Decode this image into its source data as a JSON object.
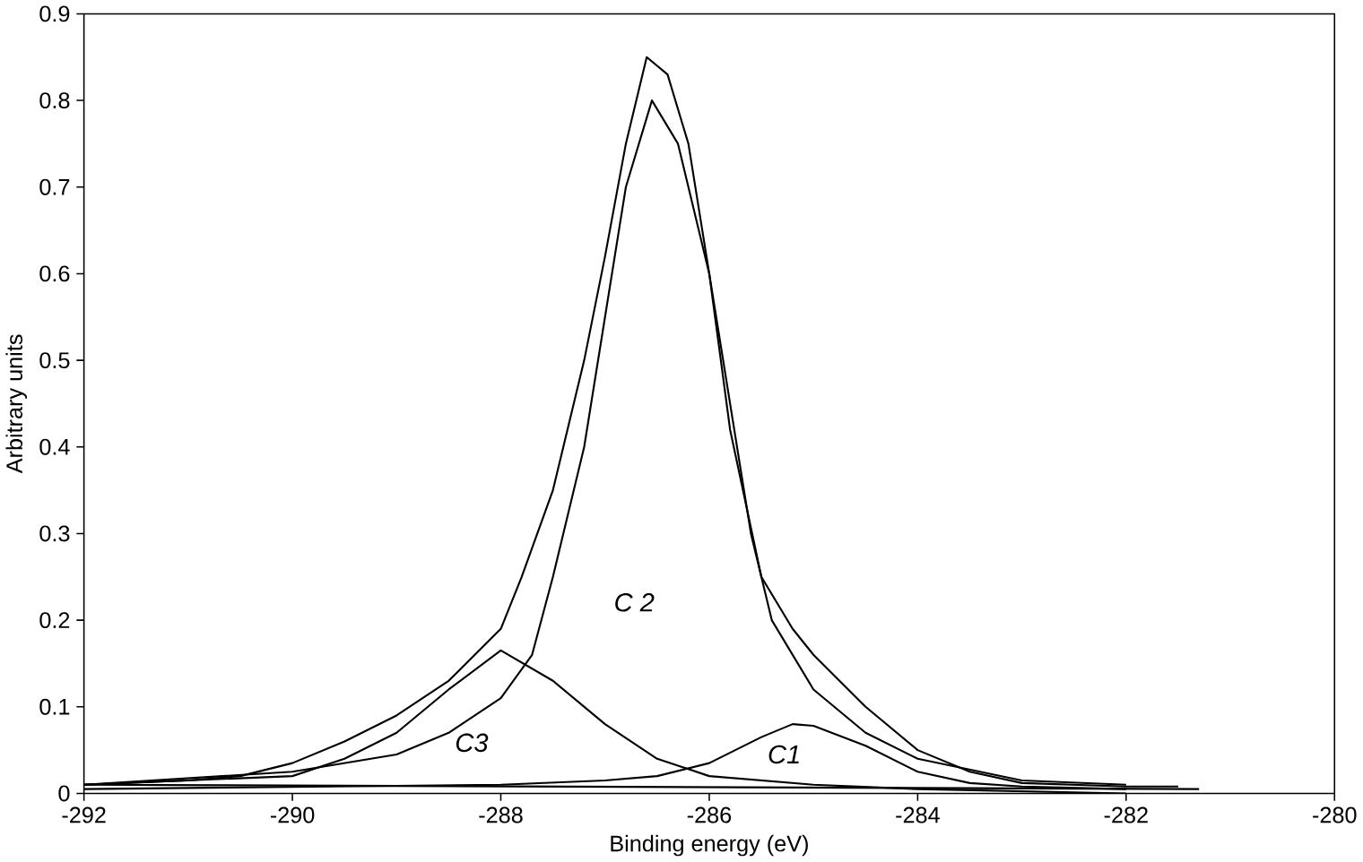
{
  "chart_data": {
    "type": "line",
    "xlabel": "Binding energy (eV)",
    "ylabel": "Arbitrary units",
    "xlim": [
      -292,
      -280
    ],
    "xticks": [
      -292,
      -290,
      -288,
      -286,
      -284,
      -282,
      -280
    ],
    "ylim": [
      0,
      0.9
    ],
    "yticks": [
      0,
      0.1,
      0.2,
      0.3,
      0.4,
      0.5,
      0.6,
      0.7,
      0.8,
      0.9
    ],
    "grid": false,
    "marker": "none",
    "line_style": "solid",
    "series": [
      {
        "color": "#000000",
        "x": [
          -292,
          -291,
          -290.5,
          -290,
          -289.5,
          -289,
          -288.5,
          -288,
          -287.8,
          -287.5,
          -287.2,
          -287,
          -286.8,
          -286.6,
          -286.4,
          -286.2,
          -286,
          -285.8,
          -285.5,
          -285.2,
          -285,
          -284.5,
          -284,
          -283.5,
          -283,
          -282,
          -281.5
        ],
        "values": [
          0.01,
          0.015,
          0.02,
          0.035,
          0.06,
          0.09,
          0.13,
          0.19,
          0.25,
          0.35,
          0.5,
          0.62,
          0.75,
          0.85,
          0.83,
          0.75,
          0.6,
          0.42,
          0.25,
          0.19,
          0.16,
          0.1,
          0.05,
          0.025,
          0.012,
          0.008,
          0.008
        ]
      },
      {
        "color": "#000000",
        "x": [
          -292,
          -290,
          -289,
          -288.5,
          -288,
          -287.7,
          -287.5,
          -287.2,
          -287,
          -286.8,
          -286.55,
          -286.3,
          -286,
          -285.8,
          -285.6,
          -285.4,
          -285,
          -284.5,
          -284,
          -283,
          -282
        ],
        "values": [
          0.01,
          0.025,
          0.045,
          0.07,
          0.11,
          0.16,
          0.25,
          0.4,
          0.55,
          0.7,
          0.8,
          0.75,
          0.6,
          0.45,
          0.3,
          0.2,
          0.12,
          0.07,
          0.04,
          0.015,
          0.01
        ]
      },
      {
        "color": "#000000",
        "x": [
          -292,
          -290,
          -289.5,
          -289,
          -288.5,
          -288,
          -287.5,
          -287,
          -286.5,
          -286,
          -285,
          -284,
          -282
        ],
        "values": [
          0.01,
          0.02,
          0.04,
          0.07,
          0.12,
          0.165,
          0.13,
          0.08,
          0.04,
          0.02,
          0.01,
          0.005,
          0.0
        ]
      },
      {
        "color": "#000000",
        "x": [
          -292,
          -288,
          -287,
          -286.5,
          -286,
          -285.5,
          -285.2,
          -285,
          -284.5,
          -284,
          -283.5,
          -283,
          -282
        ],
        "values": [
          0.005,
          0.01,
          0.015,
          0.02,
          0.035,
          0.065,
          0.08,
          0.078,
          0.055,
          0.025,
          0.012,
          0.008,
          0.005
        ]
      },
      {
        "color": "#000000",
        "x": [
          -292,
          -281.3
        ],
        "values": [
          0.01,
          0.005
        ]
      }
    ],
    "annotations": [
      "C 2",
      "C3",
      "C1"
    ]
  }
}
